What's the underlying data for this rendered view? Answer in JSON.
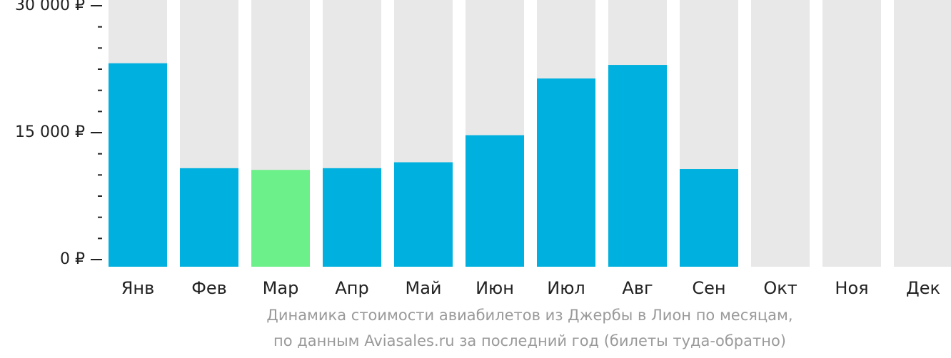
{
  "chart_data": {
    "type": "bar",
    "title": "",
    "xlabel": "",
    "ylabel": "",
    "ylim": [
      0,
      30000
    ],
    "y_ticks": [
      {
        "value": 0,
        "label": "0 ₽"
      },
      {
        "value": 15000,
        "label": "15 000 ₽"
      },
      {
        "value": 30000,
        "label": "30 000 ₽"
      }
    ],
    "categories": [
      "Янв",
      "Фев",
      "Мар",
      "Апр",
      "Май",
      "Июн",
      "Июл",
      "Авг",
      "Сен",
      "Окт",
      "Ноя",
      "Дек"
    ],
    "values": [
      23200,
      10800,
      10600,
      10800,
      11500,
      14700,
      21400,
      23000,
      10700,
      null,
      null,
      null
    ],
    "highlight_index": 2,
    "grid": false,
    "legend": "none"
  },
  "caption": {
    "line1": "Динамика стоимости авиабилетов из Джербы в Лион по месяцам,",
    "line2": "по данным Aviasales.ru за последний год (билеты туда-обратно)"
  },
  "colors": {
    "bar": "#00b0de",
    "bar_highlight": "#6cf08a",
    "bar_background": "#e8e8e8",
    "axis": "#222222",
    "caption": "#9a9a9a"
  }
}
